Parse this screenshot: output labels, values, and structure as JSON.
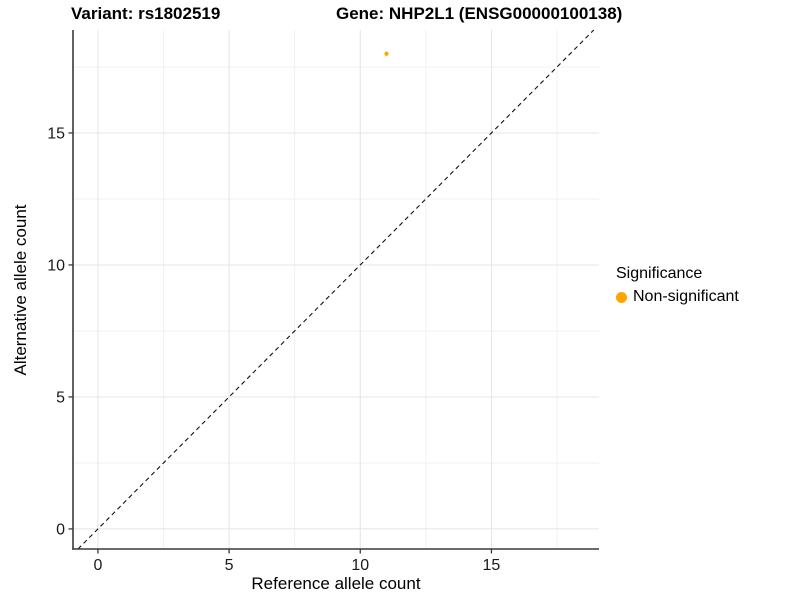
{
  "chart_data": {
    "type": "scatter",
    "titles": {
      "left": "Variant: rs1802519",
      "right": "Gene: NHP2L1 (ENSG00000100138)"
    },
    "xlabel": "Reference allele count",
    "ylabel": "Alternative allele count",
    "xlim": [
      -0.95,
      19.1
    ],
    "ylim": [
      -0.76,
      18.9
    ],
    "xticks": [
      0,
      5,
      10,
      15
    ],
    "yticks": [
      0,
      5,
      10,
      15
    ],
    "minor_grid_step": 2.5,
    "grid": {
      "major": true,
      "minor": true
    },
    "points": [
      {
        "x": 11,
        "y": 18,
        "series": "Non-significant"
      }
    ],
    "identity_line": {
      "style": "dashed",
      "slope": 1,
      "intercept": 0,
      "color": "#111111"
    },
    "legend": {
      "title": "Significance",
      "position": "right",
      "entries": [
        {
          "label": "Non-significant",
          "color": "#FFA500"
        }
      ]
    },
    "colors": {
      "grid_major": "#e4e4e4",
      "grid_minor": "#f2f2f2",
      "axis": "#3a3a3a",
      "tick_label": "#1a1a1a"
    }
  }
}
